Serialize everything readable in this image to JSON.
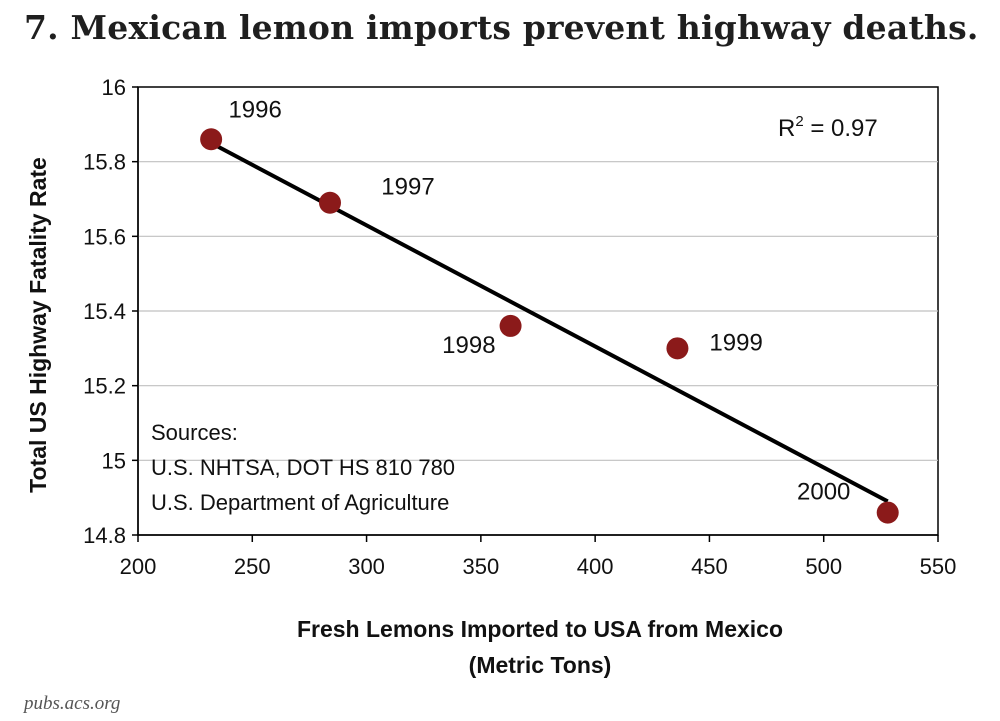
{
  "headline": "7. Mexican lemon imports prevent highway deaths.",
  "credit": "pubs.acs.org",
  "colors": {
    "point": "#8b1a1a",
    "trendline": "#000000",
    "grid": "#c0c0c0",
    "axis": "#000000"
  },
  "chart_data": {
    "type": "scatter",
    "title": "",
    "xlabel": [
      "Fresh Lemons Imported to USA from Mexico",
      "(Metric Tons)"
    ],
    "ylabel": "Total US Highway Fatality Rate",
    "xlim": [
      200,
      550
    ],
    "ylim": [
      14.8,
      16
    ],
    "xticks": [
      200,
      250,
      300,
      350,
      400,
      450,
      500,
      550
    ],
    "yticks": [
      14.8,
      15,
      15.2,
      15.4,
      15.6,
      15.8,
      16
    ],
    "ytick_labels": [
      "14.8",
      "15",
      "15.2",
      "15.4",
      "15.6",
      "15.8",
      "16"
    ],
    "grid": "horizontal",
    "points": [
      {
        "x": 232,
        "y": 15.86,
        "label": "1996"
      },
      {
        "x": 284,
        "y": 15.69,
        "label": "1997"
      },
      {
        "x": 363,
        "y": 15.36,
        "label": "1998"
      },
      {
        "x": 436,
        "y": 15.3,
        "label": "1999"
      },
      {
        "x": 528,
        "y": 14.86,
        "label": "2000"
      }
    ],
    "trendline": {
      "x": [
        232,
        528
      ],
      "y": [
        15.85,
        14.89
      ]
    },
    "annotations": {
      "r2_base": "R",
      "r2_sup": "2",
      "r2_rest": " = 0.97",
      "sources": [
        "Sources:",
        "U.S. NHTSA, DOT HS 810 780",
        "U.S. Department of Agriculture"
      ]
    }
  }
}
